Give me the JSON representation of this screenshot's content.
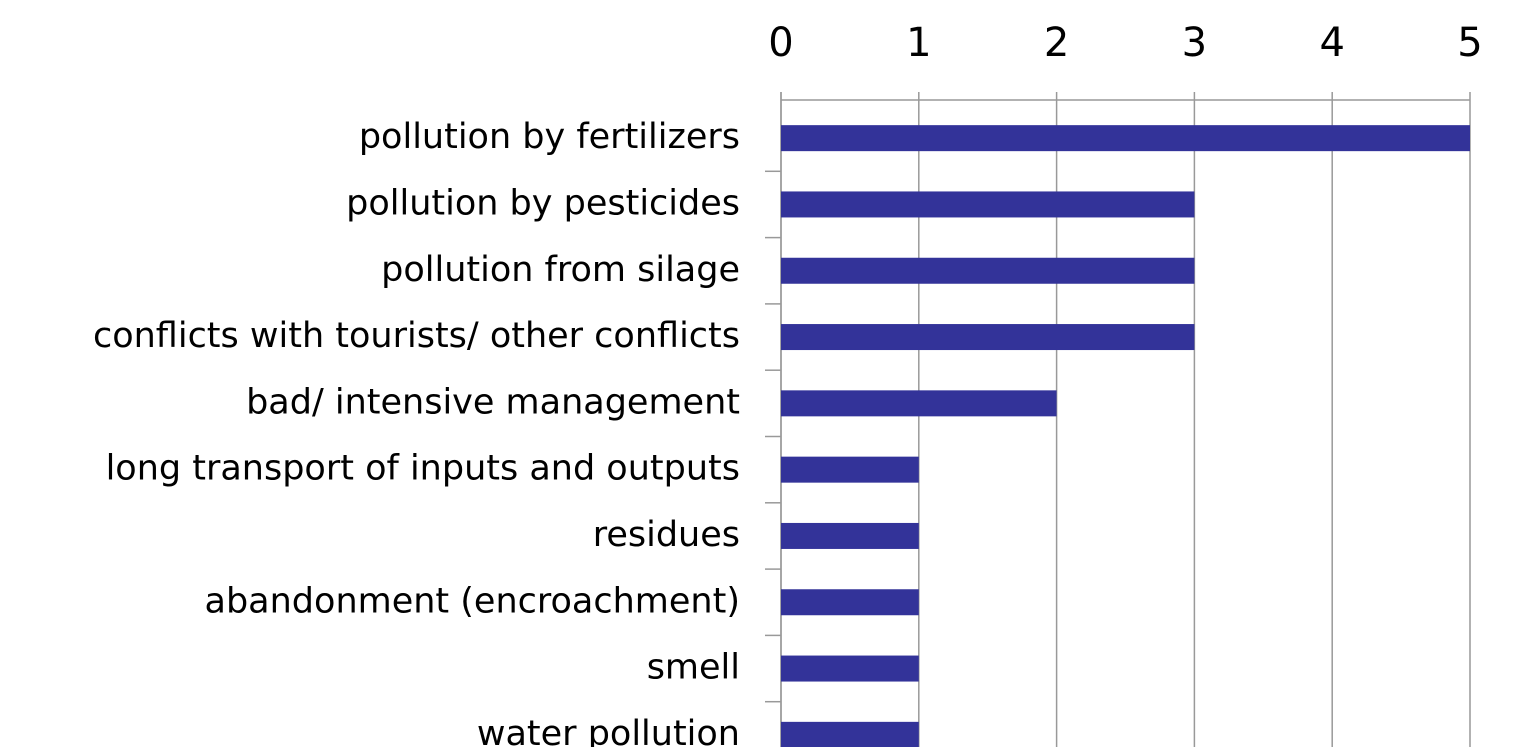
{
  "chart_data": {
    "type": "bar",
    "orientation": "horizontal",
    "categories": [
      "pollution by fertilizers",
      "pollution by pesticides",
      "pollution from silage",
      "conflicts with tourists/ other conflicts",
      "bad/ intensive management",
      "long transport of inputs and outputs",
      "residues",
      "abandonment (encroachment)",
      "smell",
      "water pollution"
    ],
    "values": [
      5,
      3,
      3,
      3,
      2,
      1,
      1,
      1,
      1,
      1
    ],
    "color": "#333399",
    "xlim": [
      0,
      5
    ],
    "xticks": [
      0,
      1,
      2,
      3,
      4,
      5
    ],
    "grid": true
  }
}
